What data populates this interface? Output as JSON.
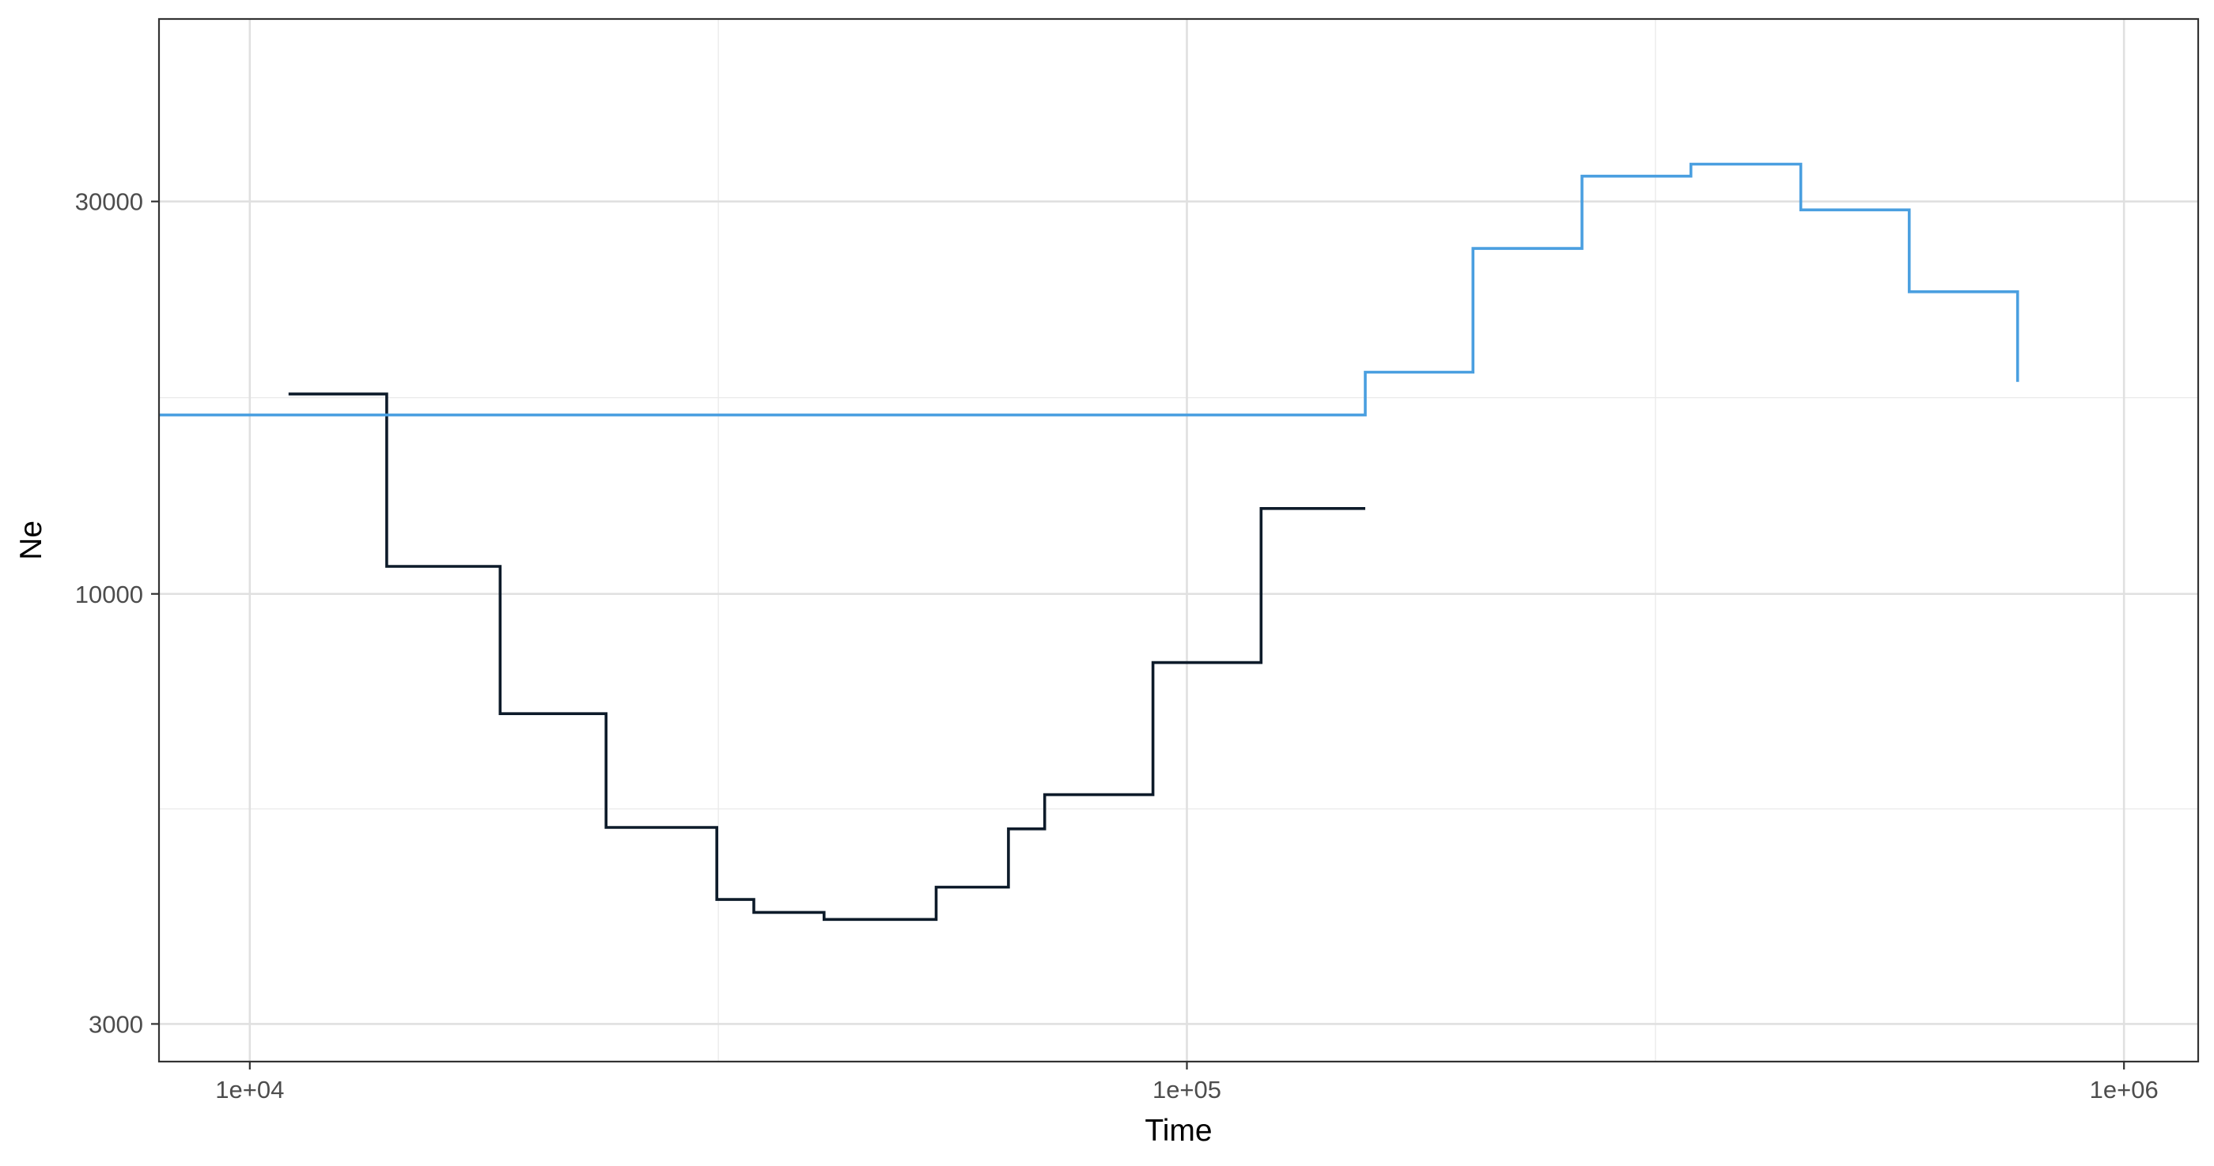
{
  "chart_data": {
    "type": "line",
    "step": true,
    "xlabel": "Time",
    "ylabel": "Ne",
    "x_scale": "log10",
    "y_scale": "log10",
    "xlim": [
      8000,
      1200000
    ],
    "ylim": [
      2700,
      50000
    ],
    "x_ticks": [
      {
        "value": 10000,
        "label": "1e+04"
      },
      {
        "value": 100000,
        "label": "1e+05"
      },
      {
        "value": 1000000,
        "label": "1e+06"
      }
    ],
    "x_minor_ticks": [
      31623,
      316228
    ],
    "y_ticks": [
      {
        "value": 3000,
        "label": "3000"
      },
      {
        "value": 10000,
        "label": "10000"
      },
      {
        "value": 30000,
        "label": "30000"
      }
    ],
    "y_minor_ticks": [
      5477,
      17321
    ],
    "grid": true,
    "legend": "none",
    "series": [
      {
        "color": "#0d1b2a",
        "points": [
          [
            11000,
            17500
          ],
          [
            14000,
            17500
          ],
          [
            14000,
            10800
          ],
          [
            18500,
            10800
          ],
          [
            18500,
            7150
          ],
          [
            24000,
            7150
          ],
          [
            24000,
            5200
          ],
          [
            31500,
            5200
          ],
          [
            31500,
            4250
          ],
          [
            34500,
            4250
          ],
          [
            34500,
            4100
          ],
          [
            41000,
            4100
          ],
          [
            41000,
            4020
          ],
          [
            54000,
            4020
          ],
          [
            54000,
            4400
          ],
          [
            64500,
            4400
          ],
          [
            64500,
            5180
          ],
          [
            70500,
            5180
          ],
          [
            70500,
            5700
          ],
          [
            92000,
            5700
          ],
          [
            92000,
            8250
          ],
          [
            120000,
            8250
          ],
          [
            120000,
            12700
          ],
          [
            155000,
            12700
          ]
        ]
      },
      {
        "color": "#4a9fe0",
        "points": [
          [
            8000,
            16500
          ],
          [
            155000,
            16500
          ],
          [
            155000,
            18600
          ],
          [
            202000,
            18600
          ],
          [
            202000,
            26300
          ],
          [
            264000,
            26300
          ],
          [
            264000,
            32200
          ],
          [
            345000,
            32200
          ],
          [
            345000,
            33300
          ],
          [
            452000,
            33300
          ],
          [
            452000,
            29300
          ],
          [
            590000,
            29300
          ],
          [
            590000,
            23300
          ],
          [
            770000,
            23300
          ],
          [
            770000,
            18100
          ]
        ]
      }
    ]
  }
}
